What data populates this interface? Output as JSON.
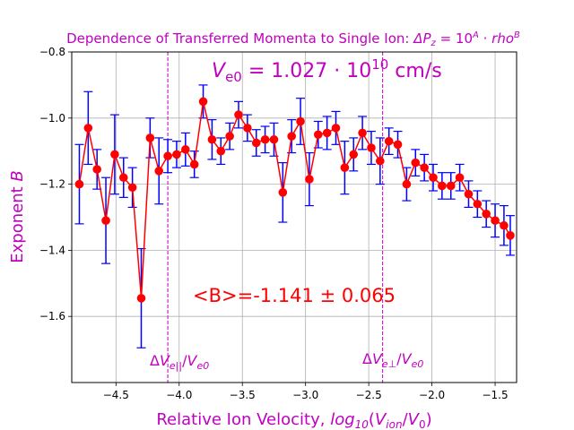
{
  "chart_data": {
    "type": "line",
    "title": "Dependence of Transferred Momenta to Single Ion: ΔP_z = 10^A · rho^B",
    "xlabel": "Relative Ion Velocity, log10(V_ion/V_0)",
    "ylabel": "Exponent B",
    "xlim": [
      -4.85,
      -1.33
    ],
    "ylim": [
      -1.8,
      -0.8
    ],
    "grid": true,
    "x_ticks": [
      -4.5,
      -4.0,
      -3.5,
      -3.0,
      -2.5,
      -2.0,
      -1.5
    ],
    "x_tick_labels": [
      "−4.5",
      "−4.0",
      "−3.5",
      "−3.0",
      "−2.5",
      "−2.0",
      "−1.5"
    ],
    "y_ticks": [
      -0.8,
      -1.0,
      -1.2,
      -1.4,
      -1.6
    ],
    "y_tick_labels": [
      "−0.8",
      "−1.0",
      "−1.2",
      "−1.4",
      "−1.6"
    ],
    "series": [
      {
        "color": "#ff0000",
        "errorbar_color": "#0000ff",
        "x": [
          -4.79,
          -4.72,
          -4.65,
          -4.58,
          -4.51,
          -4.44,
          -4.37,
          -4.3,
          -4.23,
          -4.16,
          -4.09,
          -4.02,
          -3.95,
          -3.88,
          -3.81,
          -3.74,
          -3.67,
          -3.6,
          -3.53,
          -3.46,
          -3.39,
          -3.32,
          -3.25,
          -3.18,
          -3.11,
          -3.04,
          -2.97,
          -2.9,
          -2.83,
          -2.76,
          -2.69,
          -2.62,
          -2.55,
          -2.48,
          -2.41,
          -2.34,
          -2.27,
          -2.2,
          -2.13,
          -2.06,
          -1.99,
          -1.92,
          -1.85,
          -1.78,
          -1.71,
          -1.64,
          -1.57,
          -1.5,
          -1.43,
          -1.38
        ],
        "y": [
          -1.2,
          -1.03,
          -1.155,
          -1.31,
          -1.11,
          -1.18,
          -1.21,
          -1.545,
          -1.06,
          -1.16,
          -1.115,
          -1.11,
          -1.095,
          -1.14,
          -0.95,
          -1.065,
          -1.1,
          -1.055,
          -0.99,
          -1.03,
          -1.075,
          -1.065,
          -1.065,
          -1.225,
          -1.055,
          -1.01,
          -1.185,
          -1.05,
          -1.045,
          -1.03,
          -1.15,
          -1.11,
          -1.045,
          -1.09,
          -1.13,
          -1.07,
          -1.08,
          -1.2,
          -1.135,
          -1.15,
          -1.18,
          -1.205,
          -1.205,
          -1.18,
          -1.23,
          -1.26,
          -1.29,
          -1.31,
          -1.325,
          -1.355
        ],
        "err": [
          0.12,
          0.11,
          0.06,
          0.13,
          0.12,
          0.06,
          0.06,
          0.15,
          0.06,
          0.1,
          0.05,
          0.04,
          0.05,
          0.04,
          0.05,
          0.06,
          0.04,
          0.04,
          0.04,
          0.04,
          0.04,
          0.04,
          0.05,
          0.09,
          0.05,
          0.07,
          0.08,
          0.04,
          0.05,
          0.05,
          0.08,
          0.05,
          0.05,
          0.05,
          0.07,
          0.04,
          0.04,
          0.05,
          0.04,
          0.04,
          0.04,
          0.04,
          0.04,
          0.04,
          0.04,
          0.04,
          0.04,
          0.05,
          0.06,
          0.06
        ]
      }
    ],
    "vlines": [
      {
        "x": -4.09,
        "label": "ΔV_e||/V_e0",
        "color": "#bf00bf"
      },
      {
        "x": -2.39,
        "label": "ΔV_e⊥/V_e0",
        "color": "#bf00bf"
      }
    ],
    "annotations": [
      {
        "text": "V_e0 = 1.027 · 10^10 cm/s",
        "color": "#bf00bf"
      },
      {
        "text": "<B>=-1.141 ± 0.065",
        "color": "#ff0000"
      }
    ]
  }
}
